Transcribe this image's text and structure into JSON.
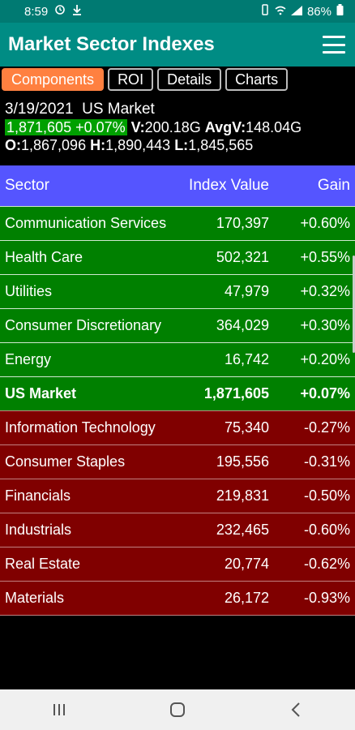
{
  "status": {
    "time": "8:59",
    "battery": "86%"
  },
  "app": {
    "title": "Market Sector Indexes"
  },
  "tabs": [
    {
      "label": "Components",
      "active": true
    },
    {
      "label": "ROI",
      "active": false
    },
    {
      "label": "Details",
      "active": false
    },
    {
      "label": "Charts",
      "active": false
    }
  ],
  "summary": {
    "date": "3/19/2021",
    "market": "US Market",
    "value_change": "1,871,605 +0.07%",
    "volume_label": "V:",
    "volume": "200.18G",
    "avgv_label": "AvgV:",
    "avgv": "148.04G",
    "open_label": "O:",
    "open": "1,867,096",
    "high_label": "H:",
    "high": "1,890,443",
    "low_label": "L:",
    "low": "1,845,565"
  },
  "table": {
    "headers": {
      "sector": "Sector",
      "value": "Index Value",
      "gain": "Gain"
    },
    "rows": [
      {
        "sector": "Communication Services",
        "value": "170,397",
        "gain": "+0.60%"
      },
      {
        "sector": "Health Care",
        "value": "502,321",
        "gain": "+0.55%"
      },
      {
        "sector": "Utilities",
        "value": "47,979",
        "gain": "+0.32%"
      },
      {
        "sector": "Consumer Discretionary",
        "value": "364,029",
        "gain": "+0.30%"
      },
      {
        "sector": "Energy",
        "value": "16,742",
        "gain": "+0.20%"
      },
      {
        "sector": "US Market",
        "value": "1,871,605",
        "gain": "+0.07%"
      },
      {
        "sector": "Information Technology",
        "value": "75,340",
        "gain": "-0.27%"
      },
      {
        "sector": "Consumer Staples",
        "value": "195,556",
        "gain": "-0.31%"
      },
      {
        "sector": "Financials",
        "value": "219,831",
        "gain": "-0.50%"
      },
      {
        "sector": "Industrials",
        "value": "232,465",
        "gain": "-0.60%"
      },
      {
        "sector": "Real Estate",
        "value": "20,774",
        "gain": "-0.62%"
      },
      {
        "sector": "Materials",
        "value": "26,172",
        "gain": "-0.93%"
      }
    ]
  },
  "colors": {
    "app_bar": "#008c84",
    "active_tab": "#ff8040",
    "header_row": "#5555ff",
    "gain_row": "#008000",
    "loss_row": "#800000"
  }
}
